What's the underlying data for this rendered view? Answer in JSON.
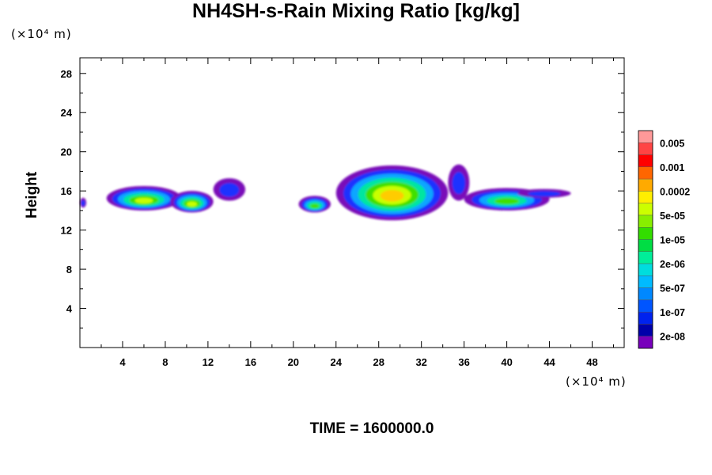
{
  "title": "NH4SH-s-Rain Mixing Ratio [kg/kg]",
  "y_unit": "(×10⁴ m)",
  "x_unit": "(×10⁴ m)",
  "time_label": "TIME = 1600000.0",
  "chart_data": {
    "type": "heatmap",
    "title": "NH4SH-s-Rain Mixing Ratio [kg/kg]",
    "xlabel": "",
    "ylabel": "Height",
    "x_unit": "(×10⁴ m)",
    "y_unit": "(×10⁴ m)",
    "xlim": [
      0,
      51
    ],
    "ylim": [
      0,
      29.6
    ],
    "x_ticks": [
      4,
      8,
      12,
      16,
      20,
      24,
      28,
      32,
      36,
      40,
      44,
      48
    ],
    "y_ticks": [
      4,
      8,
      12,
      16,
      20,
      24,
      28
    ],
    "grid": false,
    "legend_placement": "right",
    "colorbar": {
      "labels": [
        "0.005",
        "0.001",
        "0.0002",
        "5e-05",
        "1e-05",
        "2e-06",
        "5e-07",
        "1e-07",
        "2e-08"
      ],
      "colors": [
        "#ff9999",
        "#ff4444",
        "#ff0000",
        "#ff6600",
        "#ffaa00",
        "#ffee00",
        "#ccff00",
        "#88ee00",
        "#33dd00",
        "#00dd44",
        "#00ee99",
        "#00dddd",
        "#00bbff",
        "#0088ff",
        "#0055ff",
        "#0022ee",
        "#0000aa",
        "#7700bb"
      ]
    },
    "regions": [
      {
        "x": [
          0,
          0.6
        ],
        "y": [
          14.3,
          15.3
        ],
        "peak": "1e-07"
      },
      {
        "x": [
          2.5,
          9.5
        ],
        "y": [
          14.0,
          16.5
        ],
        "peak": "5e-05"
      },
      {
        "x": [
          8.5,
          12.5
        ],
        "y": [
          13.8,
          16.0
        ],
        "peak": "5e-05"
      },
      {
        "x": [
          12.5,
          15.5
        ],
        "y": [
          15.0,
          17.3
        ],
        "peak": "1e-07"
      },
      {
        "x": [
          20.5,
          23.5
        ],
        "y": [
          13.8,
          15.5
        ],
        "peak": "1e-05"
      },
      {
        "x": [
          24,
          34.5
        ],
        "y": [
          13.0,
          18.6
        ],
        "peak": "0.0002"
      },
      {
        "x": [
          34.5,
          36.5
        ],
        "y": [
          15.0,
          18.7
        ],
        "peak": "1e-07"
      },
      {
        "x": [
          36,
          44
        ],
        "y": [
          14.0,
          16.3
        ],
        "peak": "1e-05"
      },
      {
        "x": [
          41,
          46
        ],
        "y": [
          15.3,
          16.2
        ],
        "peak": "1e-07"
      }
    ]
  }
}
